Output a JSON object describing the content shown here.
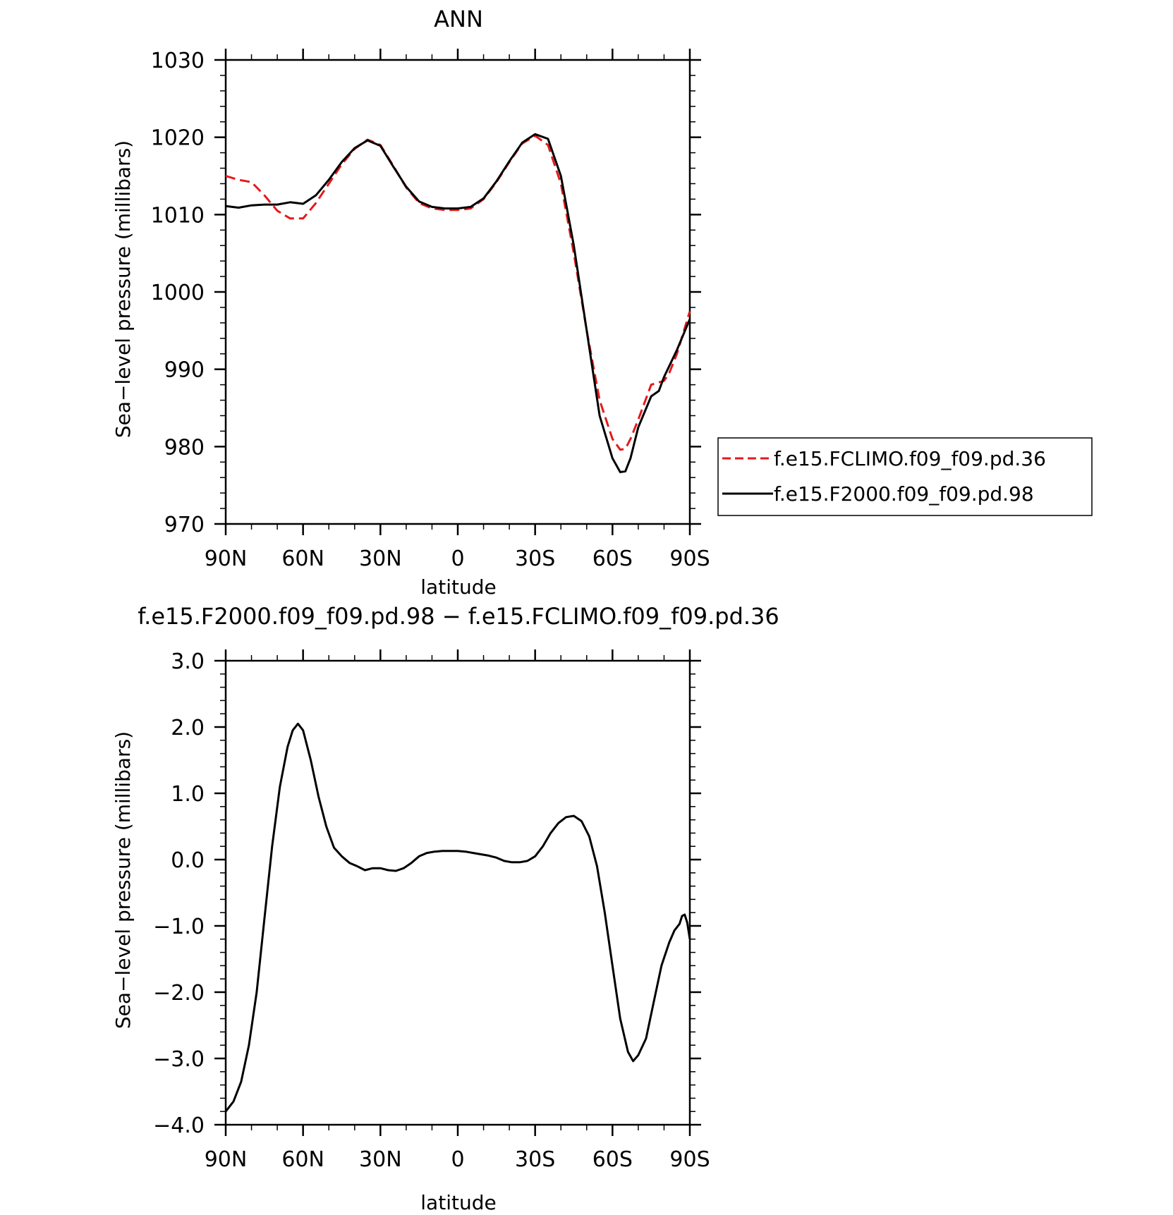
{
  "top_title": "ANN",
  "bottom_title": "f.e15.F2000.f09_f09.pd.98 − f.e15.FCLIMO.f09_f09.pd.36",
  "chart_data": [
    {
      "type": "line",
      "title": "ANN",
      "xlabel": "latitude",
      "ylabel": "Sea−level pressure (millibars)",
      "x_ticks": [
        "90N",
        "60N",
        "30N",
        "0",
        "30S",
        "60S",
        "90S"
      ],
      "x_tick_values": [
        90,
        60,
        30,
        0,
        -30,
        -60,
        -90
      ],
      "xlim": [
        90,
        -90
      ],
      "y_ticks": [
        "970",
        "980",
        "990",
        "1000",
        "1010",
        "1020",
        "1030"
      ],
      "ylim": [
        970,
        1030
      ],
      "legend_position": "right",
      "series": [
        {
          "name": "f.e15.FCLIMO.f09_f09.pd.36",
          "color": "#e41a1c",
          "style": "dashed",
          "x": [
            90,
            85,
            80,
            75,
            70,
            65,
            60,
            55,
            50,
            45,
            40,
            35,
            30,
            25,
            20,
            15,
            10,
            5,
            0,
            -5,
            -10,
            -15,
            -20,
            -25,
            -30,
            -35,
            -40,
            -45,
            -50,
            -55,
            -60,
            -63,
            -65,
            -67,
            -70,
            -75,
            -80,
            -82,
            -85,
            -90
          ],
          "y": [
            1015.0,
            1014.5,
            1014.2,
            1012.5,
            1010.5,
            1009.5,
            1009.5,
            1011.5,
            1014.0,
            1016.5,
            1018.5,
            1019.7,
            1019.0,
            1016.3,
            1013.5,
            1011.5,
            1010.8,
            1010.6,
            1010.6,
            1010.8,
            1012.0,
            1014.2,
            1016.8,
            1019.2,
            1020.2,
            1019.0,
            1014.0,
            1005.0,
            995.0,
            986.0,
            981.0,
            979.6,
            979.7,
            981.0,
            983.5,
            988.0,
            988.5,
            989.5,
            992.0,
            997.5
          ]
        },
        {
          "name": "f.e15.F2000.f09_f09.pd.98",
          "color": "#000000",
          "style": "solid",
          "x": [
            90,
            85,
            80,
            75,
            70,
            65,
            60,
            55,
            50,
            45,
            40,
            35,
            30,
            25,
            20,
            15,
            10,
            5,
            0,
            -5,
            -10,
            -15,
            -20,
            -25,
            -30,
            -35,
            -40,
            -45,
            -50,
            -55,
            -60,
            -63,
            -65,
            -67,
            -70,
            -75,
            -78,
            -80,
            -85,
            -90
          ],
          "y": [
            1011.1,
            1010.9,
            1011.2,
            1011.3,
            1011.3,
            1011.6,
            1011.4,
            1012.5,
            1014.5,
            1016.8,
            1018.6,
            1019.6,
            1018.9,
            1016.2,
            1013.6,
            1011.7,
            1011.0,
            1010.8,
            1010.8,
            1011.0,
            1012.1,
            1014.3,
            1016.9,
            1019.3,
            1020.4,
            1019.8,
            1015.0,
            1006.0,
            995.0,
            984.0,
            978.5,
            976.7,
            976.8,
            978.5,
            982.5,
            986.5,
            987.2,
            989.0,
            992.5,
            996.5
          ]
        }
      ]
    },
    {
      "type": "line",
      "title": "f.e15.F2000.f09_f09.pd.98 − f.e15.FCLIMO.f09_f09.pd.36",
      "xlabel": "latitude",
      "ylabel": "Sea−level pressure (millibars)",
      "x_ticks": [
        "90N",
        "60N",
        "30N",
        "0",
        "30S",
        "60S",
        "90S"
      ],
      "x_tick_values": [
        90,
        60,
        30,
        0,
        -30,
        -60,
        -90
      ],
      "xlim": [
        90,
        -90
      ],
      "y_ticks": [
        "−4.0",
        "−3.0",
        "−2.0",
        "−1.0",
        "0.0",
        "1.0",
        "2.0",
        "3.0"
      ],
      "ylim": [
        -4.0,
        3.0
      ],
      "series": [
        {
          "name": "",
          "color": "#000000",
          "style": "solid",
          "x": [
            90,
            87,
            84,
            81,
            78,
            75,
            72,
            69,
            66,
            64,
            62,
            60,
            57,
            54,
            51,
            48,
            45,
            42,
            39,
            36,
            33,
            30,
            27,
            24,
            21,
            18,
            15,
            12,
            9,
            6,
            3,
            0,
            -3,
            -6,
            -9,
            -12,
            -15,
            -18,
            -21,
            -24,
            -27,
            -30,
            -33,
            -36,
            -39,
            -42,
            -45,
            -48,
            -51,
            -54,
            -57,
            -60,
            -63,
            -66,
            -68,
            -70,
            -73,
            -76,
            -79,
            -82,
            -84,
            -86,
            -87,
            -88,
            -89,
            -90
          ],
          "y": [
            -3.8,
            -3.65,
            -3.35,
            -2.8,
            -2.0,
            -0.9,
            0.2,
            1.1,
            1.7,
            1.95,
            2.05,
            1.95,
            1.5,
            0.95,
            0.5,
            0.18,
            0.05,
            -0.05,
            -0.1,
            -0.16,
            -0.13,
            -0.13,
            -0.16,
            -0.17,
            -0.13,
            -0.05,
            0.05,
            0.1,
            0.12,
            0.13,
            0.13,
            0.13,
            0.12,
            0.1,
            0.08,
            0.06,
            0.03,
            -0.02,
            -0.04,
            -0.04,
            -0.02,
            0.05,
            0.2,
            0.4,
            0.55,
            0.64,
            0.66,
            0.58,
            0.35,
            -0.1,
            -0.8,
            -1.6,
            -2.4,
            -2.9,
            -3.04,
            -2.95,
            -2.7,
            -2.15,
            -1.6,
            -1.25,
            -1.07,
            -0.97,
            -0.85,
            -0.83,
            -0.95,
            -1.2
          ]
        }
      ]
    }
  ]
}
